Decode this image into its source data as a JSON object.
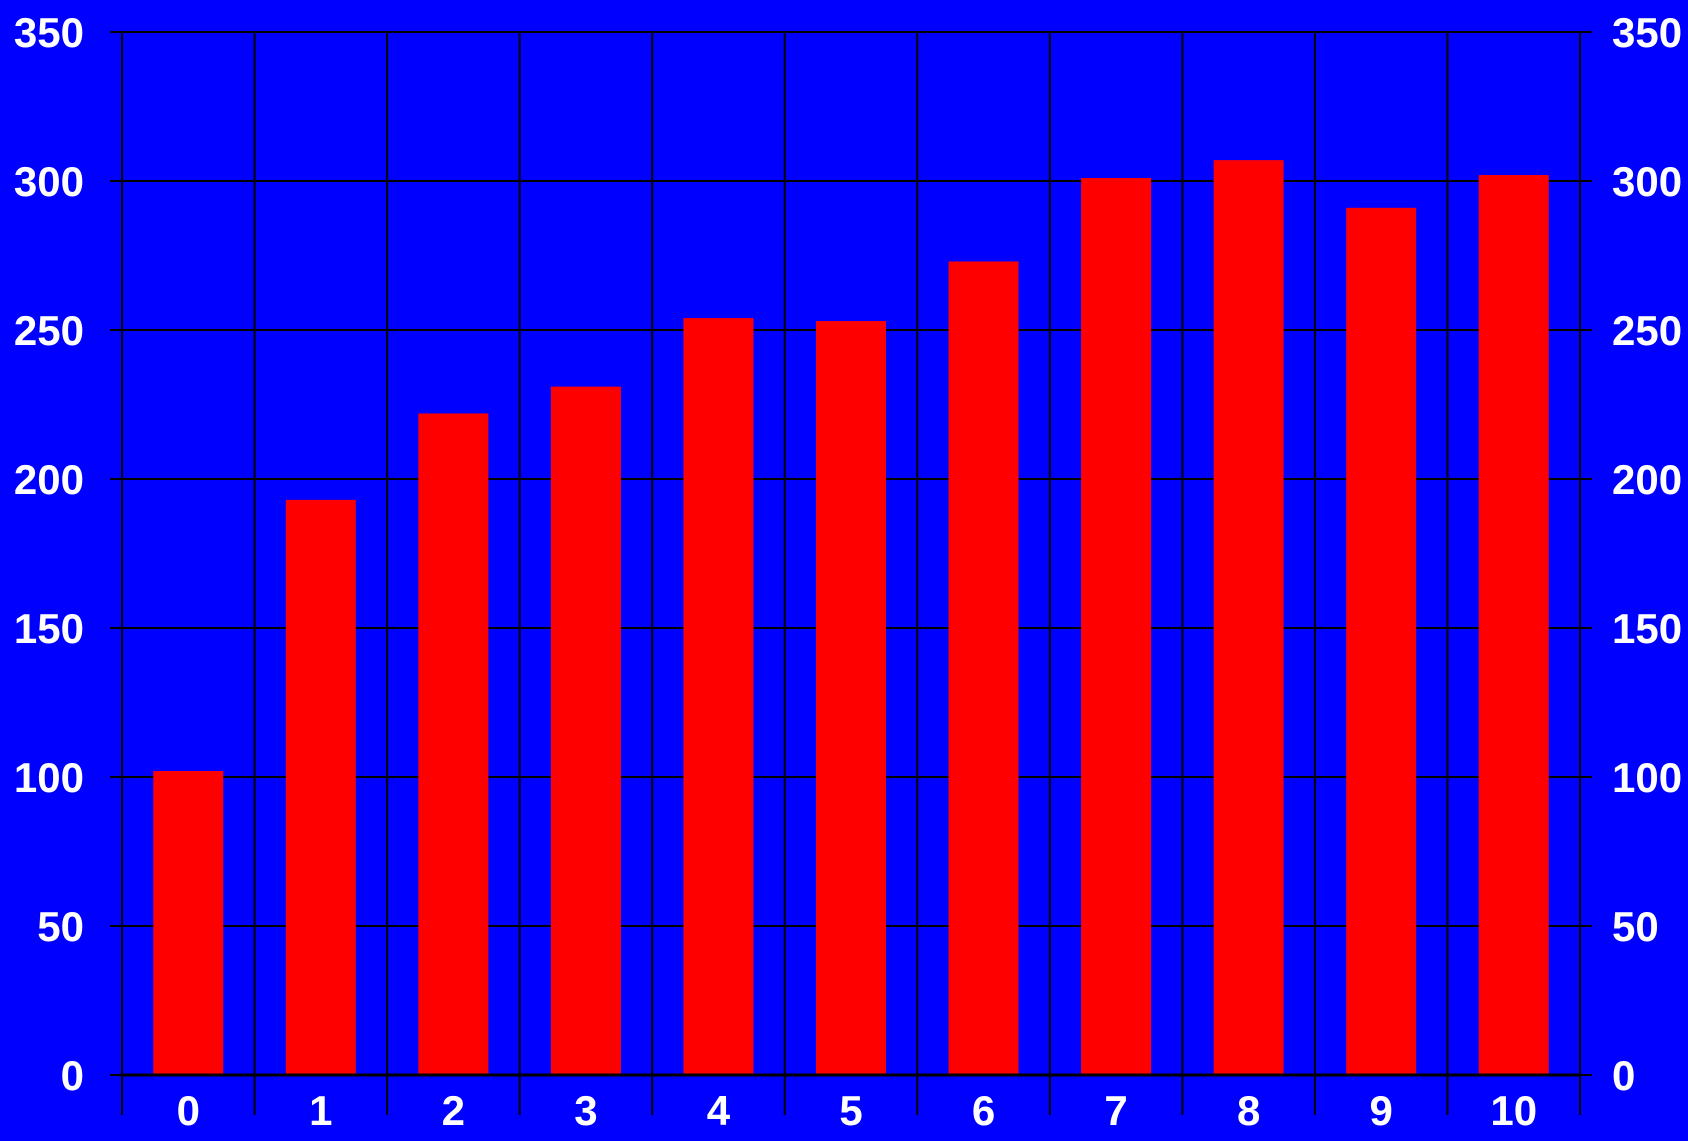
{
  "chart_data": {
    "type": "bar",
    "categories": [
      "0",
      "1",
      "2",
      "3",
      "4",
      "5",
      "6",
      "7",
      "8",
      "9",
      "10"
    ],
    "values": [
      102,
      193,
      222,
      231,
      254,
      253,
      273,
      301,
      307,
      291,
      302
    ],
    "ylim": [
      0,
      350
    ],
    "yticks": [
      "0",
      "50",
      "100",
      "150",
      "200",
      "250",
      "300",
      "350"
    ],
    "title": "",
    "xlabel": "",
    "ylabel": "",
    "grid": true,
    "y_axis_both_sides": true,
    "colors": {
      "background": "#0000ff",
      "bar": "#ff0000",
      "grid": "#000000",
      "text": "#ffffff"
    }
  }
}
